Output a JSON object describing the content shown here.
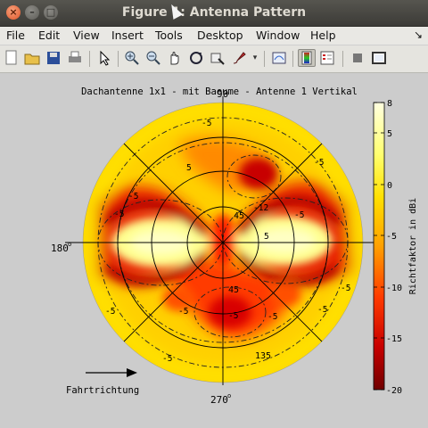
{
  "window": {
    "title": "Figure 1: Antenna Pattern"
  },
  "menu": [
    "File",
    "Edit",
    "View",
    "Insert",
    "Tools",
    "Desktop",
    "Window",
    "Help"
  ],
  "toolbar": {
    "buttons": [
      "new-file-icon",
      "open-folder-icon",
      "save-icon",
      "print-icon",
      "arrow-select-icon",
      "zoom-in-icon",
      "zoom-out-icon",
      "pan-hand-icon",
      "rotate-3d-icon",
      "data-cursor-icon",
      "brush-icon",
      "link-plot-icon",
      "colorbar-icon",
      "legend-icon",
      "hide-plot-tools-icon",
      "show-plot-tools-icon"
    ]
  },
  "plot": {
    "title": "Dachantenne 1x1 - mit Baeume - Antenne 1 Vertikal",
    "angle_labels": {
      "left": "180",
      "bottom": "270",
      "top": "90"
    },
    "zenith_labels": [
      "45",
      "135",
      "45"
    ],
    "contour_labels": [
      "-5",
      "-5",
      "-5",
      "-5",
      "-5",
      "-5",
      "-5",
      "-5",
      "-5",
      "-5",
      "-12",
      "5",
      "5",
      "-5",
      "-5"
    ],
    "direction_label": "Fahrtrichtung",
    "colorbar_label": "Richtfaktor in dBi",
    "colorbar_ticks": [
      "8",
      "5",
      "0",
      "-5",
      "-10",
      "-15",
      "-20"
    ]
  },
  "chart_data": {
    "type": "heatmap",
    "title": "Dachantenne 1x1 - mit Baeume - Antenne 1 Vertikal",
    "colorbar_label": "Richtfaktor in dBi",
    "clim": [
      -20,
      8
    ],
    "colorbar_ticks": [
      8,
      5,
      0,
      -5,
      -10,
      -15,
      -20
    ],
    "azimuth_ticks_deg": [
      90,
      180,
      270
    ],
    "colors": {
      "low": "#7a0000",
      "mid": "#ff3000",
      "high": "#ffff60",
      "top": "#ffffe0"
    }
  }
}
